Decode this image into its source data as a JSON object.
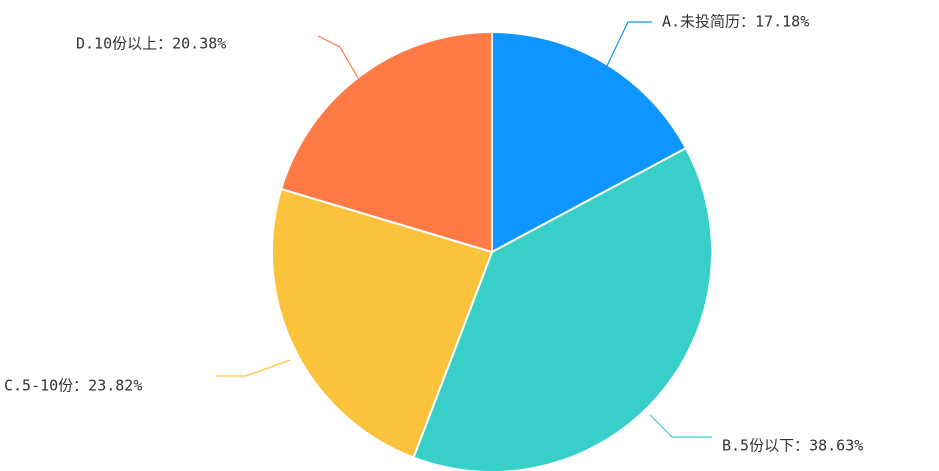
{
  "chart_data": {
    "type": "pie",
    "title": "",
    "series": [
      {
        "label": "A.未投简历：17.18%",
        "value": 17.18,
        "color": "#0f95ff"
      },
      {
        "label": "B.5份以下：38.63%",
        "value": 38.63,
        "color": "#37cfc8"
      },
      {
        "label": "C.5-10份：23.82%",
        "value": 23.82,
        "color": "#fbc23c"
      },
      {
        "label": "D.10份以上：20.38%",
        "value": 20.38,
        "color": "#ff7a45"
      }
    ],
    "start_angle_deg": 0,
    "direction": "clockwise"
  }
}
